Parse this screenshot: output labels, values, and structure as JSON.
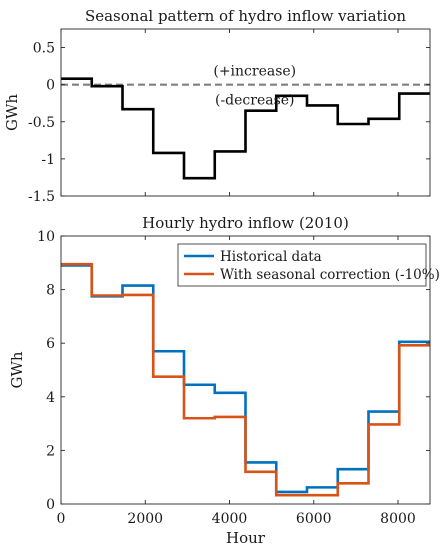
{
  "chart_data": [
    {
      "type": "line",
      "step": true,
      "title": "Seasonal pattern of hydro inflow variation",
      "ylabel": "GWh",
      "xlabel": "",
      "xlim": [
        0,
        8760
      ],
      "ylim": [
        -1.5,
        0.75
      ],
      "yticks": [
        -1.5,
        -1,
        -0.5,
        0,
        0.5
      ],
      "ytick_labels": [
        "-1.5",
        "-1",
        "-0.5",
        "0",
        "0.5"
      ],
      "xticks": [
        0,
        2000,
        4000,
        6000,
        8000
      ],
      "xtick_labels": [
        "",
        "",
        "",
        "",
        ""
      ],
      "grid": false,
      "edges": [
        0,
        730,
        1460,
        2190,
        2920,
        3650,
        4380,
        5110,
        5840,
        6570,
        7300,
        8030,
        8760
      ],
      "series": [
        {
          "color": "#000000",
          "values": [
            0.08,
            -0.02,
            -0.33,
            -0.92,
            -1.26,
            -0.9,
            -0.35,
            -0.15,
            -0.28,
            -0.53,
            -0.46,
            -0.12
          ]
        }
      ],
      "reference_line": {
        "y": 0,
        "color": "#808080",
        "style": "dashed"
      },
      "annotations": [
        {
          "text": "(+increase)",
          "x": 4600,
          "y": 0.19
        },
        {
          "text": "(-decrease)",
          "x": 4600,
          "y": -0.2
        }
      ]
    },
    {
      "type": "line",
      "step": true,
      "title": "Hourly hydro inflow (2010)",
      "ylabel": "GWh",
      "xlabel": "Hour",
      "xlim": [
        0,
        8760
      ],
      "ylim": [
        0,
        10
      ],
      "yticks": [
        0,
        2,
        4,
        6,
        8,
        10
      ],
      "ytick_labels": [
        "0",
        "2",
        "4",
        "6",
        "8",
        "10"
      ],
      "xticks": [
        0,
        2000,
        4000,
        6000,
        8000
      ],
      "xtick_labels": [
        "0",
        "2000",
        "4000",
        "6000",
        "8000"
      ],
      "grid": false,
      "legend_position": "top-right",
      "edges": [
        0,
        730,
        1460,
        2190,
        2920,
        3650,
        4380,
        5110,
        5840,
        6570,
        7300,
        8030,
        8760
      ],
      "series": [
        {
          "name": "Historical data",
          "color": "#0072BD",
          "values": [
            8.9,
            7.75,
            8.15,
            5.7,
            4.45,
            4.15,
            1.55,
            0.45,
            0.62,
            1.3,
            3.45,
            6.05
          ]
        },
        {
          "name": "With seasonal correction (-10%)",
          "color": "#D95319",
          "values": [
            8.95,
            7.78,
            7.8,
            4.75,
            3.2,
            3.25,
            1.2,
            0.33,
            0.33,
            0.77,
            2.97,
            5.92
          ]
        }
      ]
    }
  ]
}
